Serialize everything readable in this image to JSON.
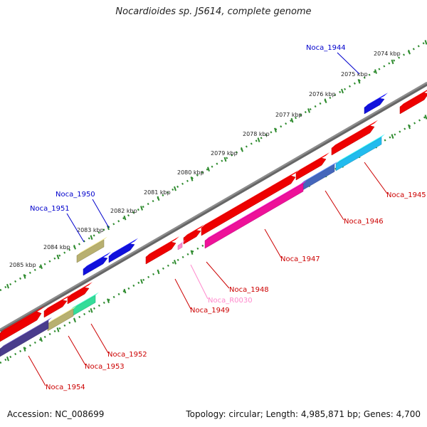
{
  "title": "Nocardioides sp. JS614, complete genome",
  "footer": {
    "accession": "Accession: NC_008699",
    "summary": "Topology: circular; Length: 4,985,871 bp; Genes: 4,700"
  },
  "colors": {
    "backbone": "#8c8c8c",
    "tick": "#2e8b2e",
    "forward_label": "#0000cc",
    "reverse_label": "#cc0000",
    "rna_label": "#ff88cc"
  },
  "scale_labels": [
    "2074 kbp",
    "2075 kbp",
    "2076 kbp",
    "2077 kbp",
    "2078 kbp",
    "2079 kbp",
    "2080 kbp",
    "2081 kbp",
    "2082 kbp",
    "2083 kbp",
    "2084 kbp",
    "2085 kbp"
  ],
  "genes": [
    {
      "name": "Noca_1944",
      "strand": "forward",
      "color": "#1010dd"
    },
    {
      "name": "Noca_1945",
      "strand": "reverse",
      "color": "#ee0000"
    },
    {
      "name": "Noca_1946",
      "strand": "reverse",
      "color": "#ee0000"
    },
    {
      "name": "Noca_1947",
      "strand": "reverse",
      "color": "#ee0000"
    },
    {
      "name": "Noca_1948",
      "strand": "reverse",
      "color": "#ee0000"
    },
    {
      "name": "Noca_R0030",
      "strand": "reverse",
      "color": "#ff88cc"
    },
    {
      "name": "Noca_1949",
      "strand": "reverse",
      "color": "#ee0000"
    },
    {
      "name": "Noca_1950",
      "strand": "forward",
      "color": "#1010dd"
    },
    {
      "name": "Noca_1951",
      "strand": "forward",
      "color": "#b8b070"
    },
    {
      "name": "Noca_1952",
      "strand": "reverse",
      "color": "#ee0000"
    },
    {
      "name": "Noca_1953",
      "strand": "reverse",
      "color": "#ee0000"
    },
    {
      "name": "Noca_1954",
      "strand": "reverse",
      "color": "#ee0000"
    }
  ]
}
